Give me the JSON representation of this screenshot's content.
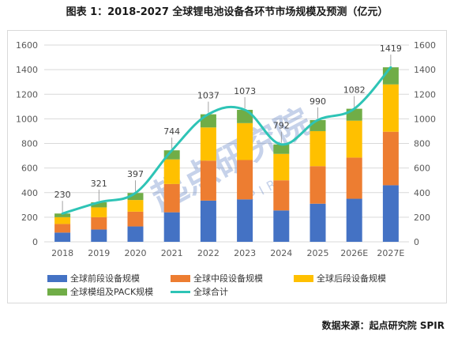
{
  "title": "图表 1：2018-2027 全球锂电池设备各环节市场规模及预测（亿元）",
  "source": "数据来源：起点研究院 SPIR",
  "watermark": "起点研究院",
  "watermark_sub": "SPIR",
  "colors": {
    "front": "#4472C4",
    "middle": "#ED7D31",
    "back": "#FFC000",
    "pack": "#70AD47",
    "total_line": "#2EC4B6",
    "grid": "#d9d9d9"
  },
  "chart_data": {
    "type": "bar",
    "stacked": true,
    "categories": [
      "2018",
      "2019",
      "2020",
      "2021",
      "2022",
      "2023",
      "2024",
      "2025",
      "2026E",
      "2027E"
    ],
    "series": [
      {
        "name": "全球前段设备规模",
        "values": [
          75,
          100,
          125,
          240,
          335,
          345,
          255,
          310,
          350,
          460
        ]
      },
      {
        "name": "全球中段设备规模",
        "values": [
          70,
          100,
          120,
          230,
          325,
          320,
          245,
          305,
          335,
          435
        ]
      },
      {
        "name": "全球后段设备规模",
        "values": [
          55,
          80,
          95,
          200,
          270,
          300,
          215,
          285,
          300,
          385
        ]
      },
      {
        "name": "全球模组及PACK规模",
        "values": [
          30,
          41,
          57,
          74,
          107,
          108,
          77,
          90,
          97,
          139
        ]
      }
    ],
    "total": {
      "name": "全球合计",
      "values": [
        230,
        321,
        397,
        744,
        1037,
        1073,
        792,
        990,
        1082,
        1419
      ]
    },
    "data_labels": [
      "230",
      "321",
      "397",
      "744",
      "1037",
      "1073",
      "792",
      "990",
      "1082",
      "1419"
    ],
    "ylim": [
      0,
      1600
    ],
    "yticks": [
      "0",
      "200",
      "400",
      "600",
      "800",
      "1000",
      "1200",
      "1400",
      "1600"
    ],
    "secondary_yticks": [
      "0",
      "200",
      "400",
      "600",
      "800",
      "1000",
      "1200",
      "1400",
      "1600"
    ],
    "grid": true,
    "legend_position": "bottom"
  }
}
